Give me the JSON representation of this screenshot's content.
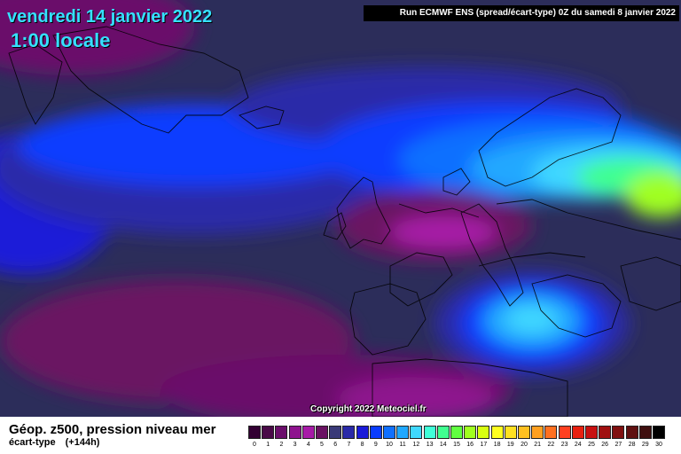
{
  "header": {
    "date": "vendredi 14 janvier 2022",
    "time": "1:00 locale",
    "run": "Run ECMWF ENS (spread/écart-type) 0Z du samedi 8 janvier 2022"
  },
  "copyright": "Copyright 2022 Meteociel.fr",
  "footer": {
    "variable": "Géop. z500, pression niveau mer",
    "stat": "écart-type",
    "lead": "(+144h)"
  },
  "legend": {
    "ticks": [
      "0",
      "1",
      "2",
      "3",
      "4",
      "5",
      "6",
      "7",
      "8",
      "9",
      "10",
      "11",
      "12",
      "13",
      "14",
      "15",
      "16",
      "17",
      "18",
      "19",
      "20",
      "21",
      "22",
      "23",
      "24",
      "25",
      "26",
      "27",
      "28",
      "29",
      "30"
    ],
    "colors": [
      "#330033",
      "#4a0a48",
      "#6b0f6b",
      "#8e138e",
      "#a71aa7",
      "#6a1262",
      "#3a3a78",
      "#2a2aa8",
      "#1a1ad8",
      "#0a3cff",
      "#1070ff",
      "#20a8ff",
      "#40d8ff",
      "#40ffd8",
      "#40ff90",
      "#60ff40",
      "#a0ff20",
      "#d8ff10",
      "#ffff20",
      "#ffe020",
      "#ffc020",
      "#ffa020",
      "#ff7020",
      "#ff4020",
      "#e82010",
      "#c81010",
      "#a01010",
      "#801010",
      "#601010",
      "#401010",
      "#000000"
    ]
  },
  "colors": {
    "background": "#2c2d5a",
    "title": "#35e0ff",
    "coastline": "#000000"
  }
}
